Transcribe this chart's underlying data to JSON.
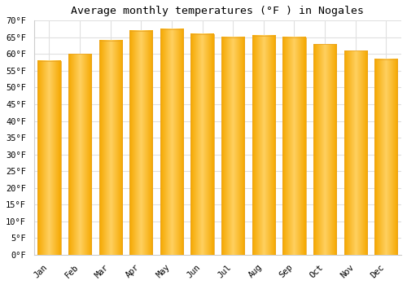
{
  "months": [
    "Jan",
    "Feb",
    "Mar",
    "Apr",
    "May",
    "Jun",
    "Jul",
    "Aug",
    "Sep",
    "Oct",
    "Nov",
    "Dec"
  ],
  "values": [
    58,
    60,
    64,
    67,
    67.5,
    66,
    65,
    65.5,
    65,
    63,
    61,
    58.5
  ],
  "bar_color_center": "#FFD060",
  "bar_color_edge": "#F5A800",
  "title": "Average monthly temperatures (°F ) in Nogales",
  "ylim": [
    0,
    70
  ],
  "yticks": [
    0,
    5,
    10,
    15,
    20,
    25,
    30,
    35,
    40,
    45,
    50,
    55,
    60,
    65,
    70
  ],
  "ytick_labels": [
    "0°F",
    "5°F",
    "10°F",
    "15°F",
    "20°F",
    "25°F",
    "30°F",
    "35°F",
    "40°F",
    "45°F",
    "50°F",
    "55°F",
    "60°F",
    "65°F",
    "70°F"
  ],
  "background_color": "#ffffff",
  "grid_color": "#e0e0e0",
  "title_fontsize": 9.5,
  "tick_fontsize": 7.5,
  "bar_width": 0.75
}
